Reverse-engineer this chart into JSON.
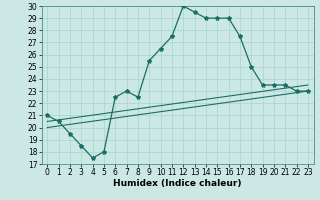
{
  "xlabel": "Humidex (Indice chaleur)",
  "bg_color": "#cce8e4",
  "line_color": "#1a6e64",
  "grid_color": "#a8d4ce",
  "ylim": [
    17,
    30
  ],
  "xlim": [
    -0.5,
    23.5
  ],
  "yticks": [
    17,
    18,
    19,
    20,
    21,
    22,
    23,
    24,
    25,
    26,
    27,
    28,
    29,
    30
  ],
  "xticks": [
    0,
    1,
    2,
    3,
    4,
    5,
    6,
    7,
    8,
    9,
    10,
    11,
    12,
    13,
    14,
    15,
    16,
    17,
    18,
    19,
    20,
    21,
    22,
    23
  ],
  "line1_x": [
    0,
    1,
    2,
    3,
    4,
    5,
    6,
    7,
    8,
    9,
    10,
    11,
    12,
    13,
    14,
    15,
    16,
    17,
    18,
    19,
    20,
    21,
    22,
    23
  ],
  "line1_y": [
    21.0,
    20.5,
    19.5,
    18.5,
    17.5,
    18.0,
    22.5,
    23.0,
    22.5,
    25.5,
    26.5,
    27.5,
    30.0,
    29.5,
    29.0,
    29.0,
    29.0,
    27.5,
    25.0,
    23.5,
    23.5,
    23.5,
    23.0,
    23.0
  ],
  "line2_x": [
    0,
    23
  ],
  "line2_y": [
    20.0,
    23.0
  ],
  "line3_x": [
    0,
    23
  ],
  "line3_y": [
    20.5,
    23.5
  ],
  "tick_fontsize": 5.5,
  "xlabel_fontsize": 6.5,
  "linewidth1": 0.9,
  "linewidth2": 0.8,
  "marker": "*",
  "markersize": 3.0
}
